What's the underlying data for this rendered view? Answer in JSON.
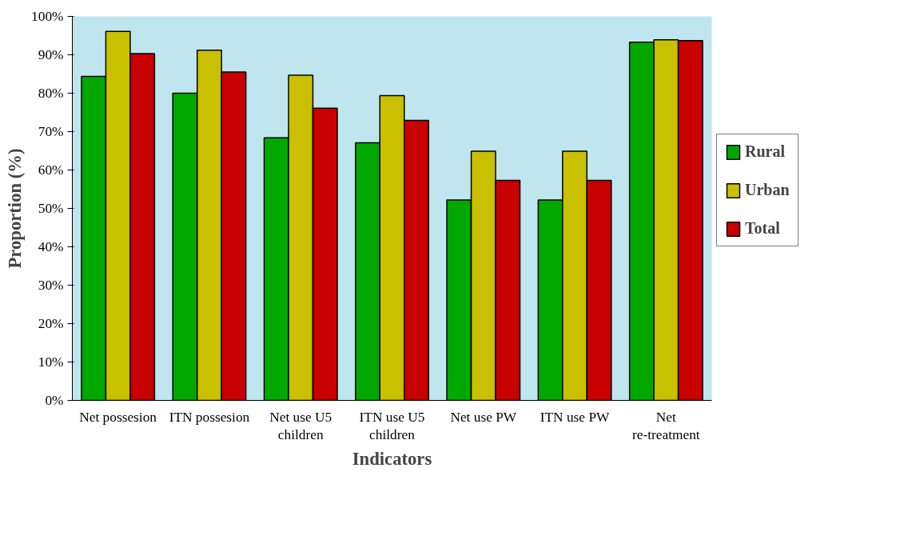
{
  "chart_data": {
    "type": "bar",
    "xlabel": "Indicators",
    "ylabel": "Proportion (%)",
    "categories": [
      "Net possesion",
      "ITN possesion",
      "Net use U5 children",
      "ITN use U5 children",
      "Net use PW",
      "ITN use PW",
      "Net re-treatment"
    ],
    "series": [
      {
        "name": "Rural",
        "color": "#00a800",
        "values": [
          84.4,
          80,
          68.4,
          67.1,
          52.2,
          52.2,
          93.3
        ]
      },
      {
        "name": "Urban",
        "color": "#c8c000",
        "values": [
          96.1,
          91.2,
          84.7,
          79.4,
          64.9,
          64.9,
          93.9
        ]
      },
      {
        "name": "Total",
        "color": "#c80000",
        "values": [
          90.3,
          85.5,
          76.1,
          72.9,
          57.3,
          57.3,
          93.7
        ]
      }
    ],
    "ylim": [
      0,
      100
    ],
    "yticks": [
      {
        "value": 0,
        "label": "0%"
      },
      {
        "value": 10,
        "label": "10%"
      },
      {
        "value": 20,
        "label": "20%"
      },
      {
        "value": 30,
        "label": "30%"
      },
      {
        "value": 40,
        "label": "40%"
      },
      {
        "value": 50,
        "label": "50%"
      },
      {
        "value": 60,
        "label": "60%"
      },
      {
        "value": 70,
        "label": "70%"
      },
      {
        "value": 80,
        "label": "80%"
      },
      {
        "value": 90,
        "label": "90%"
      },
      {
        "value": 100,
        "label": "100%"
      }
    ],
    "grid": false,
    "legend": "right"
  }
}
